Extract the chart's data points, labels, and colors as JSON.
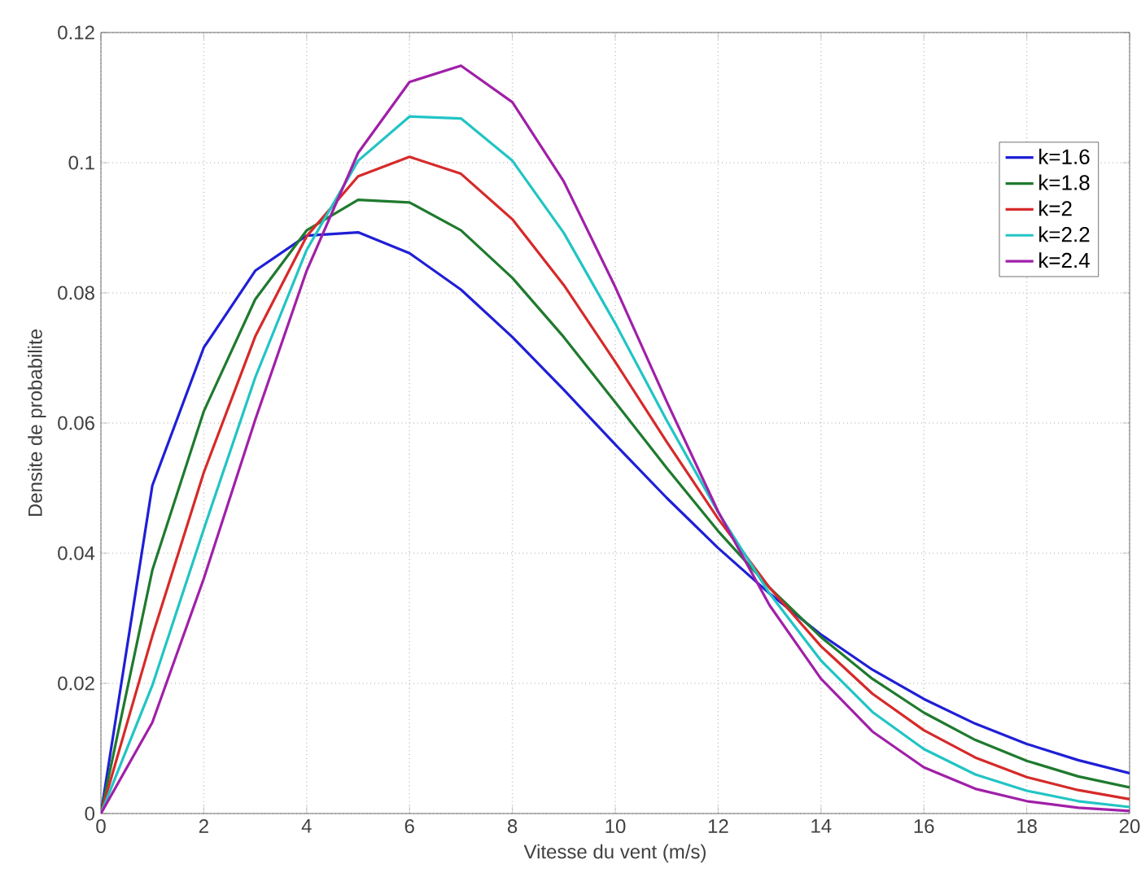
{
  "chart_data": {
    "type": "line",
    "xlabel": "Vitesse du vent (m/s)",
    "ylabel": "Densite de probabilite",
    "x": [
      0,
      1,
      2,
      3,
      4,
      5,
      6,
      7,
      8,
      9,
      10,
      11,
      12,
      13,
      14,
      15,
      16,
      17,
      18,
      19,
      20
    ],
    "series": [
      {
        "name": "k=1.6",
        "color": "#1f1fd6",
        "values": [
          0,
          0.0504,
          0.0716,
          0.0834,
          0.0888,
          0.0893,
          0.0861,
          0.0805,
          0.0732,
          0.0651,
          0.0567,
          0.0485,
          0.0408,
          0.0338,
          0.0275,
          0.0221,
          0.0176,
          0.0138,
          0.0107,
          0.0082,
          0.0062
        ]
      },
      {
        "name": "k=1.8",
        "color": "#1f7a2e",
        "values": [
          0,
          0.0374,
          0.0618,
          0.079,
          0.0896,
          0.0943,
          0.0939,
          0.0896,
          0.0823,
          0.0732,
          0.0632,
          0.0531,
          0.0434,
          0.0347,
          0.0271,
          0.0207,
          0.0155,
          0.0113,
          0.0081,
          0.0057,
          0.004
        ]
      },
      {
        "name": "k=2",
        "color": "#d62a2a",
        "values": [
          0,
          0.0273,
          0.0524,
          0.0733,
          0.0887,
          0.0979,
          0.1009,
          0.0983,
          0.0913,
          0.0812,
          0.0694,
          0.0571,
          0.0453,
          0.0347,
          0.0257,
          0.0184,
          0.0128,
          0.0086,
          0.0056,
          0.0036,
          0.0022
        ]
      },
      {
        "name": "k=2.2",
        "color": "#22c4c4",
        "values": [
          0,
          0.0197,
          0.0437,
          0.067,
          0.0866,
          0.1003,
          0.1071,
          0.1068,
          0.1003,
          0.0892,
          0.0753,
          0.0604,
          0.0463,
          0.0338,
          0.0235,
          0.0156,
          0.0099,
          0.006,
          0.0035,
          0.0019,
          0.001
        ]
      },
      {
        "name": "k=2.4",
        "color": "#a020a8",
        "values": [
          0,
          0.014,
          0.0361,
          0.0605,
          0.0834,
          0.1015,
          0.1124,
          0.1149,
          0.1093,
          0.0971,
          0.0809,
          0.0633,
          0.0464,
          0.032,
          0.0207,
          0.0126,
          0.0071,
          0.0038,
          0.0019,
          0.0009,
          0.0004
        ]
      }
    ],
    "xlim": [
      0,
      20
    ],
    "ylim": [
      0,
      0.12
    ],
    "xticks": [
      0,
      2,
      4,
      6,
      8,
      10,
      12,
      14,
      16,
      18,
      20
    ],
    "yticks": [
      0,
      0.02,
      0.04,
      0.06,
      0.08,
      0.1,
      0.12
    ],
    "grid": true,
    "legend": "top right",
    "marker": "none",
    "line_style": "solid"
  }
}
